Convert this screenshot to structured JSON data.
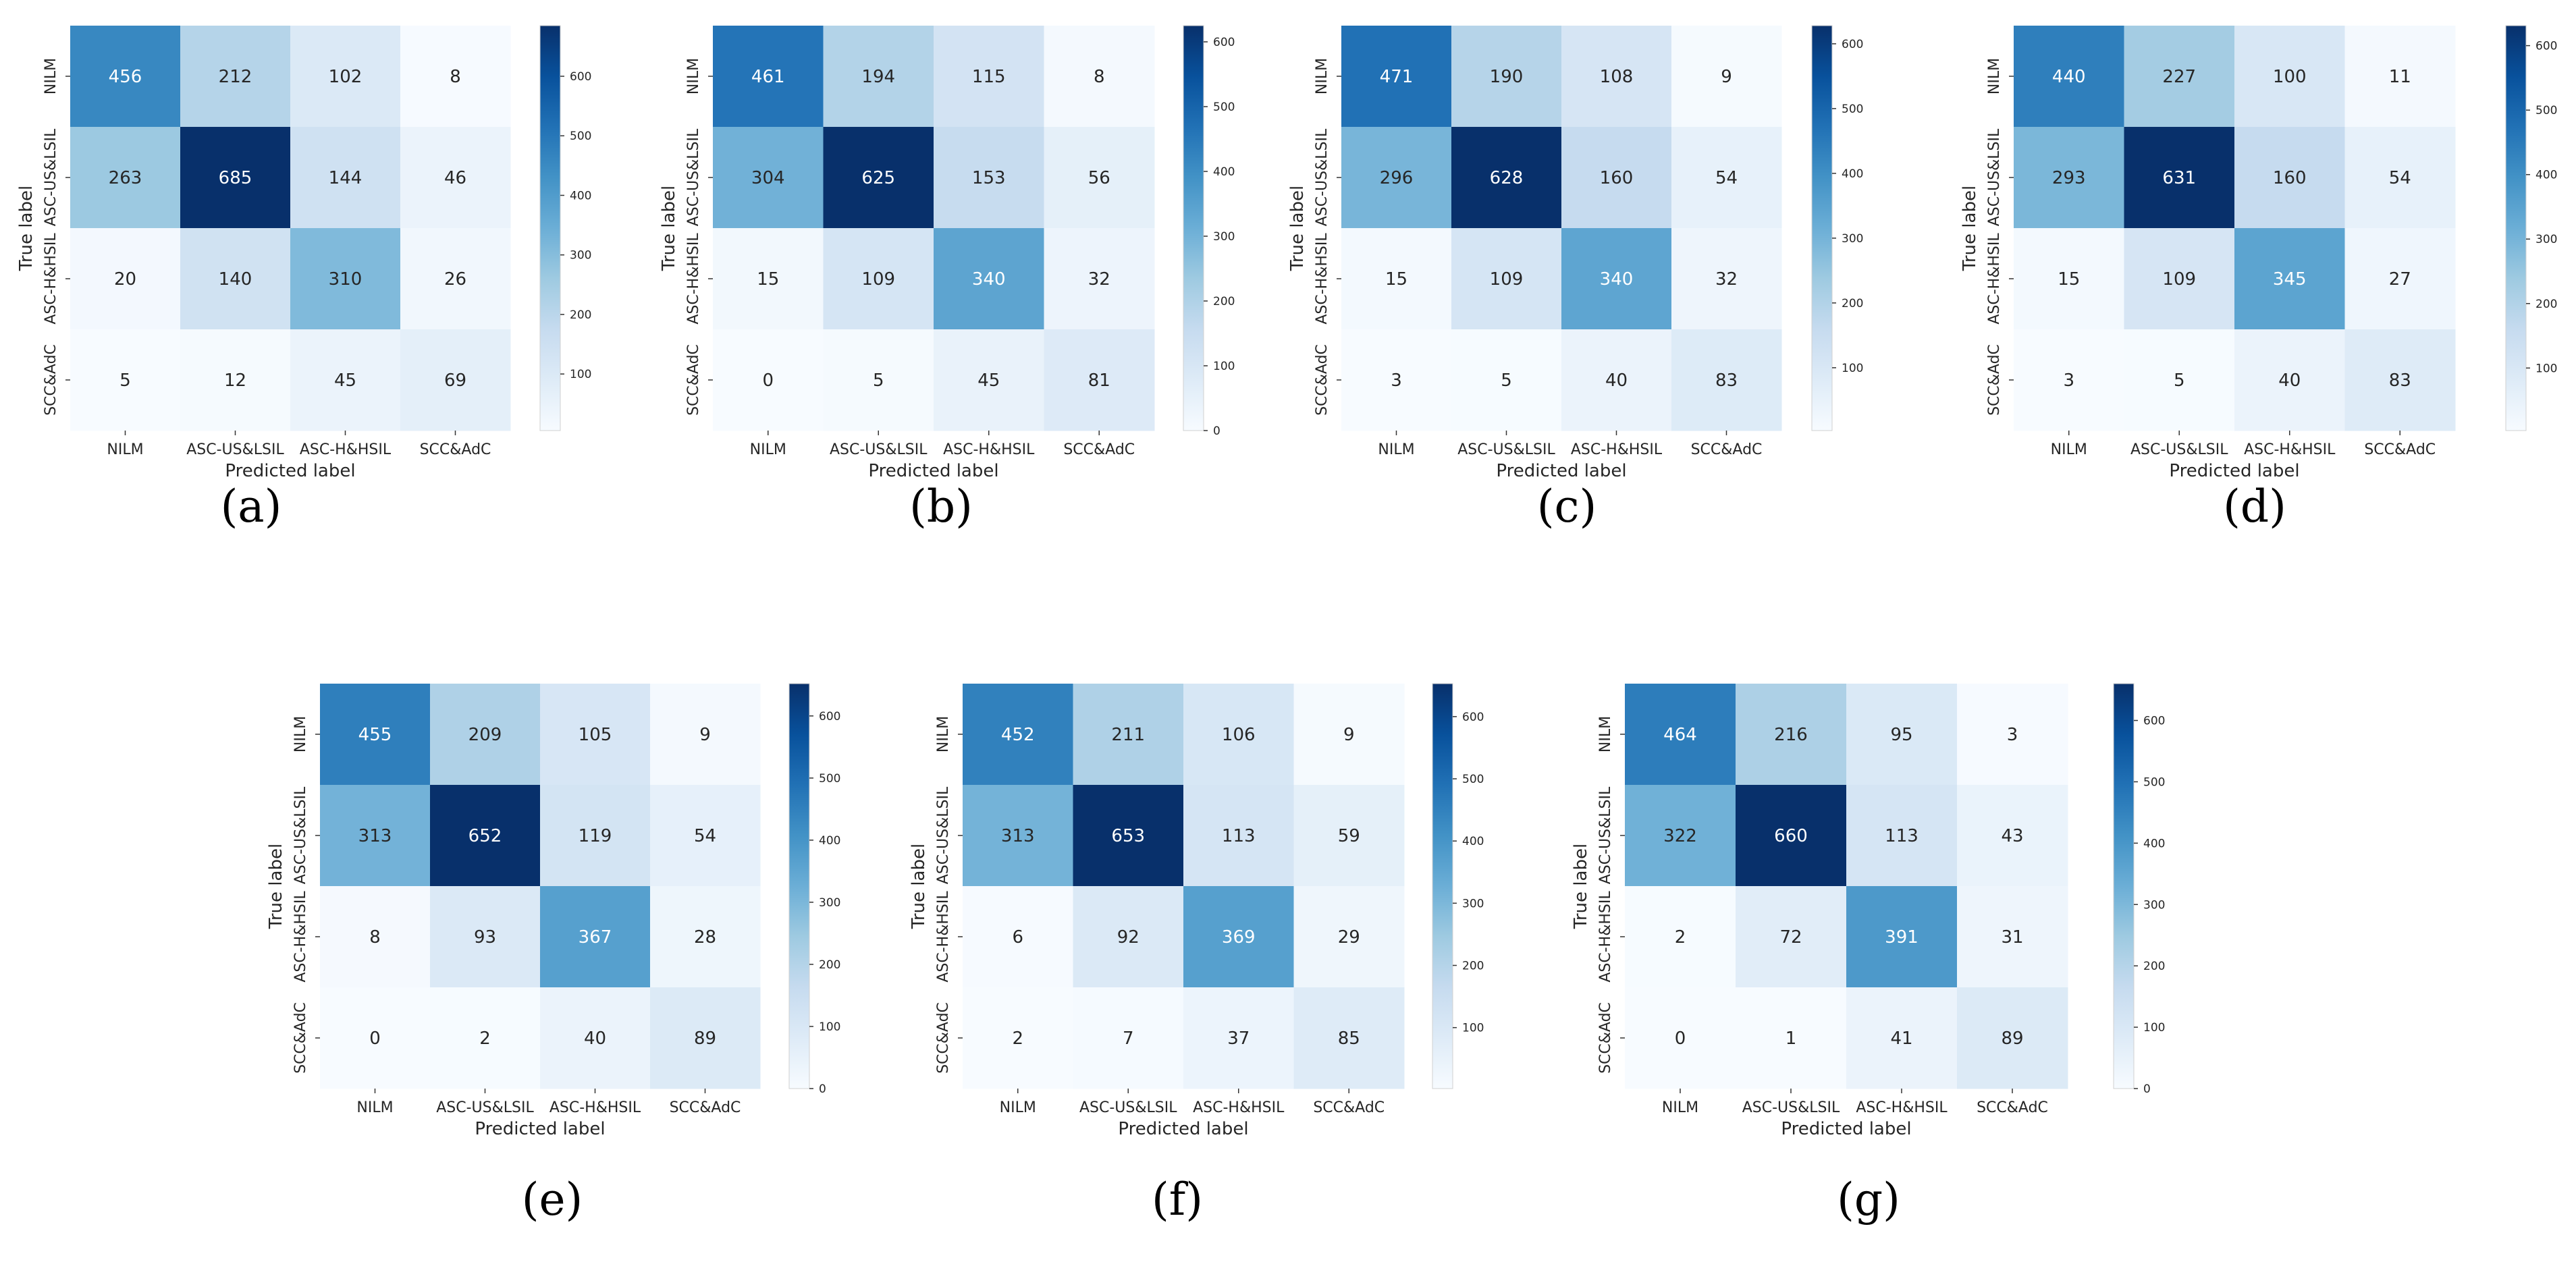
{
  "figure": {
    "row_labels": [
      "NILM",
      "ASC-US&LSIL",
      "ASC-H&HSIL",
      "SCC&AdC"
    ],
    "col_labels": [
      "NILM",
      "ASC-US&LSIL",
      "ASC-H&HSIL",
      "SCC&AdC"
    ],
    "xlabel": "Predicted label",
    "ylabel": "True label",
    "colormap": {
      "name": "Blues",
      "stops": [
        "#f7fbff",
        "#deebf7",
        "#c6dbef",
        "#9ecae1",
        "#6baed6",
        "#4292c6",
        "#2171b5",
        "#08519c",
        "#08306b"
      ]
    }
  },
  "chart_data": [
    {
      "type": "heatmap",
      "panel_label": "(a)",
      "xlabel": "Predicted label",
      "ylabel": "True label",
      "x_categories": [
        "NILM",
        "ASC-US&LSIL",
        "ASC-H&HSIL",
        "SCC&AdC"
      ],
      "y_categories": [
        "NILM",
        "ASC-US&LSIL",
        "ASC-H&HSIL",
        "SCC&AdC"
      ],
      "values": [
        [
          456,
          212,
          102,
          8
        ],
        [
          263,
          685,
          144,
          46
        ],
        [
          20,
          140,
          310,
          26
        ],
        [
          5,
          12,
          45,
          69
        ]
      ],
      "colorbar": {
        "vmin": 5,
        "vmax": 685,
        "ticks": [
          100,
          200,
          300,
          400,
          500,
          600
        ]
      }
    },
    {
      "type": "heatmap",
      "panel_label": "(b)",
      "xlabel": "Predicted label",
      "ylabel": "True label",
      "x_categories": [
        "NILM",
        "ASC-US&LSIL",
        "ASC-H&HSIL",
        "SCC&AdC"
      ],
      "y_categories": [
        "NILM",
        "ASC-US&LSIL",
        "ASC-H&HSIL",
        "SCC&AdC"
      ],
      "values": [
        [
          461,
          194,
          115,
          8
        ],
        [
          304,
          625,
          153,
          56
        ],
        [
          15,
          109,
          340,
          32
        ],
        [
          0,
          5,
          45,
          81
        ]
      ],
      "colorbar": {
        "vmin": 0,
        "vmax": 625,
        "ticks": [
          0,
          100,
          200,
          300,
          400,
          500,
          600
        ]
      }
    },
    {
      "type": "heatmap",
      "panel_label": "(c)",
      "xlabel": "Predicted label",
      "ylabel": "True label",
      "x_categories": [
        "NILM",
        "ASC-US&LSIL",
        "ASC-H&HSIL",
        "SCC&AdC"
      ],
      "y_categories": [
        "NILM",
        "ASC-US&LSIL",
        "ASC-H&HSIL",
        "SCC&AdC"
      ],
      "values": [
        [
          471,
          190,
          108,
          9
        ],
        [
          296,
          628,
          160,
          54
        ],
        [
          15,
          109,
          340,
          32
        ],
        [
          3,
          5,
          40,
          83
        ]
      ],
      "colorbar": {
        "vmin": 3,
        "vmax": 628,
        "ticks": [
          100,
          200,
          300,
          400,
          500,
          600
        ]
      }
    },
    {
      "type": "heatmap",
      "panel_label": "(d)",
      "xlabel": "Predicted label",
      "ylabel": "True label",
      "x_categories": [
        "NILM",
        "ASC-US&LSIL",
        "ASC-H&HSIL",
        "SCC&AdC"
      ],
      "y_categories": [
        "NILM",
        "ASC-US&LSIL",
        "ASC-H&HSIL",
        "SCC&AdC"
      ],
      "values": [
        [
          440,
          227,
          100,
          11
        ],
        [
          293,
          631,
          160,
          54
        ],
        [
          15,
          109,
          345,
          27
        ],
        [
          3,
          5,
          40,
          83
        ]
      ],
      "colorbar": {
        "vmin": 3,
        "vmax": 631,
        "ticks": [
          100,
          200,
          300,
          400,
          500,
          600
        ]
      }
    },
    {
      "type": "heatmap",
      "panel_label": "(e)",
      "xlabel": "Predicted label",
      "ylabel": "True label",
      "x_categories": [
        "NILM",
        "ASC-US&LSIL",
        "ASC-H&HSIL",
        "SCC&AdC"
      ],
      "y_categories": [
        "NILM",
        "ASC-US&LSIL",
        "ASC-H&HSIL",
        "SCC&AdC"
      ],
      "values": [
        [
          455,
          209,
          105,
          9
        ],
        [
          313,
          652,
          119,
          54
        ],
        [
          8,
          93,
          367,
          28
        ],
        [
          0,
          2,
          40,
          89
        ]
      ],
      "colorbar": {
        "vmin": 0,
        "vmax": 652,
        "ticks": [
          0,
          100,
          200,
          300,
          400,
          500,
          600
        ]
      }
    },
    {
      "type": "heatmap",
      "panel_label": "(f)",
      "xlabel": "Predicted label",
      "ylabel": "True label",
      "x_categories": [
        "NILM",
        "ASC-US&LSIL",
        "ASC-H&HSIL",
        "SCC&AdC"
      ],
      "y_categories": [
        "NILM",
        "ASC-US&LSIL",
        "ASC-H&HSIL",
        "SCC&AdC"
      ],
      "values": [
        [
          452,
          211,
          106,
          9
        ],
        [
          313,
          653,
          113,
          59
        ],
        [
          6,
          92,
          369,
          29
        ],
        [
          2,
          7,
          37,
          85
        ]
      ],
      "colorbar": {
        "vmin": 2,
        "vmax": 653,
        "ticks": [
          100,
          200,
          300,
          400,
          500,
          600
        ]
      }
    },
    {
      "type": "heatmap",
      "panel_label": "(g)",
      "xlabel": "Predicted label",
      "ylabel": "True label",
      "x_categories": [
        "NILM",
        "ASC-US&LSIL",
        "ASC-H&HSIL",
        "SCC&AdC"
      ],
      "y_categories": [
        "NILM",
        "ASC-US&LSIL",
        "ASC-H&HSIL",
        "SCC&AdC"
      ],
      "values": [
        [
          464,
          216,
          95,
          3
        ],
        [
          322,
          660,
          113,
          43
        ],
        [
          2,
          72,
          391,
          31
        ],
        [
          0,
          1,
          41,
          89
        ]
      ],
      "colorbar": {
        "vmin": 0,
        "vmax": 660,
        "ticks": [
          0,
          100,
          200,
          300,
          400,
          500,
          600
        ]
      }
    }
  ]
}
